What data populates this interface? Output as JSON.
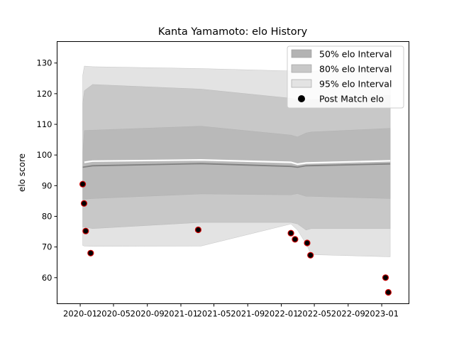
{
  "chart_data": {
    "type": "line",
    "title": "Kanta Yamamoto: elo History",
    "xlabel": "",
    "ylabel": "elo score",
    "x_axis_type": "date",
    "xlim": [
      "2019-10-09",
      "2023-04-10"
    ],
    "ylim": [
      51.5,
      137
    ],
    "x_ticks": [
      "2020-01",
      "2020-05",
      "2020-09",
      "2021-01",
      "2021-05",
      "2021-09",
      "2022-01",
      "2022-05",
      "2022-09",
      "2023-01"
    ],
    "y_ticks": [
      60,
      70,
      80,
      90,
      100,
      110,
      120,
      130
    ],
    "grid": false,
    "legend_position": "top-right",
    "legend": [
      {
        "label": "50% elo Interval",
        "kind": "band",
        "color": "#b3b3b3"
      },
      {
        "label": "80% elo Interval",
        "kind": "band",
        "color": "#c8c8c8"
      },
      {
        "label": "95% elo Interval",
        "kind": "band",
        "color": "#e3e3e3"
      },
      {
        "label": "Post Match elo",
        "kind": "marker",
        "color": "#000000"
      }
    ],
    "series": [
      {
        "kind": "band95",
        "color": "#e3e3e3",
        "x": [
          "2020-01-10",
          "2020-01-16",
          "2020-02-15",
          "2021-03-15",
          "2022-02-05",
          "2022-03-01",
          "2022-04-01",
          "2022-04-20",
          "2023-02-01"
        ],
        "upper": [
          126,
          129,
          128.8,
          128.2,
          127.4,
          127.1,
          127.1,
          127.3,
          129
        ],
        "lower": [
          70.5,
          70.3,
          70.2,
          70.3,
          77.5,
          75.5,
          71,
          67.5,
          66.8
        ]
      },
      {
        "kind": "band80",
        "color": "#c8c8c8",
        "x": [
          "2020-01-10",
          "2020-01-16",
          "2020-02-15",
          "2021-03-15",
          "2022-02-05",
          "2022-03-01",
          "2022-04-01",
          "2022-04-20",
          "2023-02-01"
        ],
        "upper": [
          117,
          121,
          123,
          121.5,
          118.5,
          118,
          118,
          118,
          119.5
        ],
        "lower": [
          76.5,
          76.5,
          76,
          78,
          78,
          77.5,
          75.5,
          76,
          76
        ]
      },
      {
        "kind": "band50",
        "color": "#b9b9b9",
        "x": [
          "2020-01-10",
          "2020-01-16",
          "2020-02-15",
          "2021-03-15",
          "2022-02-05",
          "2022-03-01",
          "2022-04-01",
          "2022-04-20",
          "2023-02-01"
        ],
        "upper": [
          101,
          108,
          108.1,
          109.4,
          106.5,
          105.9,
          107.2,
          107.5,
          108.7
        ],
        "lower": [
          85.5,
          85.6,
          85.8,
          87.3,
          87,
          87.4,
          86.5,
          86.5,
          85.8
        ]
      },
      {
        "name": "mean",
        "kind": "mean_line",
        "color": "#808080",
        "x": [
          "2020-01-10",
          "2020-02-15",
          "2021-03-15",
          "2022-02-05",
          "2022-03-01",
          "2022-04-01",
          "2023-02-01"
        ],
        "y": [
          96,
          96.5,
          97.2,
          96.3,
          96,
          96.5,
          97.1
        ]
      },
      {
        "name": "mean_highlight",
        "kind": "highlight_line",
        "color": "#ffffff",
        "x": [
          "2020-01-16",
          "2020-02-15",
          "2021-03-15",
          "2022-02-05",
          "2022-03-01",
          "2022-04-01",
          "2023-02-01"
        ],
        "y": [
          97.6,
          98,
          98.4,
          97.6,
          97,
          97.4,
          98.1
        ]
      },
      {
        "name": "Post Match elo",
        "kind": "points",
        "color": "#000000",
        "edge": "#cc0000",
        "x": [
          "2020-01-10",
          "2020-01-15",
          "2020-01-21",
          "2020-02-08",
          "2021-03-05",
          "2022-02-05",
          "2022-02-20",
          "2022-04-05",
          "2022-04-17",
          "2023-01-15",
          "2023-01-25"
        ],
        "y": [
          90.5,
          84.2,
          75.2,
          68,
          75.6,
          74.5,
          72.5,
          71.3,
          67.3,
          60,
          55.2
        ]
      }
    ]
  }
}
